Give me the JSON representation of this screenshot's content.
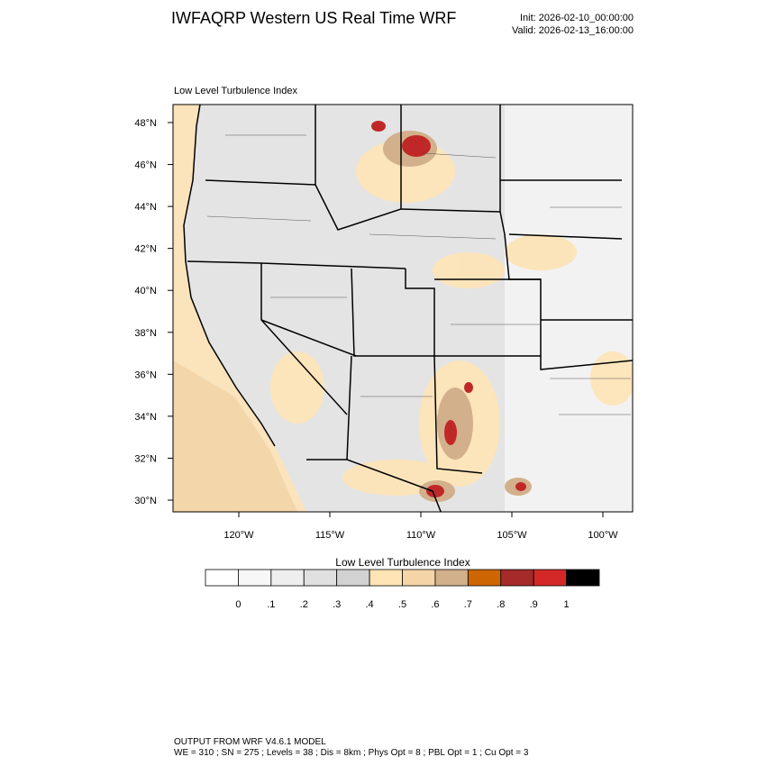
{
  "header": {
    "title": "IWFAQRP Western US Real Time WRF",
    "init": "Init: 2026-02-10_00:00:00",
    "valid": "Valid: 2026-02-13_16:00:00"
  },
  "map": {
    "title": "Low Level Turbulence Index",
    "lat_labels": [
      "48°N",
      "46°N",
      "44°N",
      "42°N",
      "40°N",
      "38°N",
      "36°N",
      "34°N",
      "32°N",
      "30°N"
    ],
    "lon_labels": [
      "120°W",
      "115°W",
      "110°W",
      "105°W",
      "100°W"
    ]
  },
  "colorbar": {
    "title": "Low Level Turbulence Index",
    "labels": [
      "0",
      ".1",
      ".2",
      ".3",
      ".4",
      ".5",
      ".6",
      ".7",
      ".8",
      ".9",
      "1"
    ],
    "colors": [
      "#ffffff",
      "#f7f7f7",
      "#eeeeee",
      "#e0e0e0",
      "#d2d2d2",
      "#ffe4b5",
      "#f5d5a8",
      "#d2b08c",
      "#cd6600",
      "#a52a2a",
      "#d42828",
      "#000000"
    ]
  },
  "footer": {
    "line1": "OUTPUT FROM WRF V4.6.1 MODEL",
    "line2": "WE = 310 ; SN = 275 ; Levels = 38 ; Dis = 8km ; Phys Opt = 8 ; PBL Opt = 1 ; Cu Opt = 3"
  }
}
